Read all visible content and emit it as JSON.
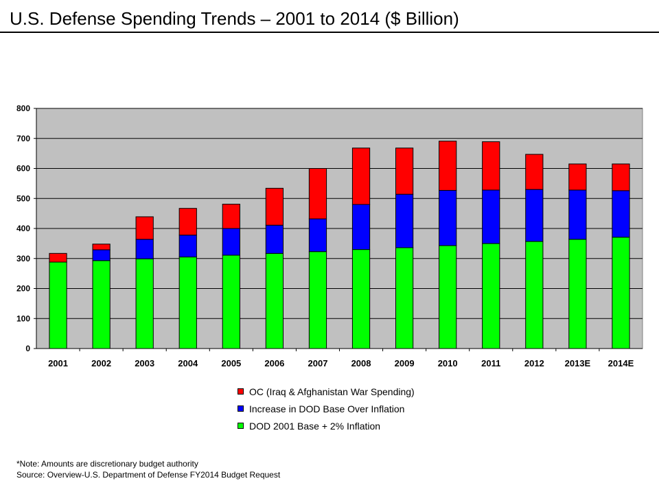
{
  "page": {
    "title": "U.S. Defense Spending Trends – 2001 to 2014 ($ Billion)"
  },
  "chart_data": {
    "type": "bar",
    "stacked": true,
    "title": "",
    "xlabel": "",
    "ylabel": "",
    "ylim": [
      0,
      800
    ],
    "yticks": [
      0,
      100,
      200,
      300,
      400,
      500,
      600,
      700,
      800
    ],
    "grid": true,
    "plot_background": "#c0c0c0",
    "legend_position": "bottom",
    "categories": [
      "2001",
      "2002",
      "2003",
      "2004",
      "2005",
      "2006",
      "2007",
      "2008",
      "2009",
      "2010",
      "2011",
      "2012",
      "2013E",
      "2014E"
    ],
    "series": [
      {
        "name": "DOD 2001 Base + 2% Inflation",
        "color": "#00ff00",
        "values": [
          288,
          293,
          299,
          305,
          311,
          317,
          323,
          330,
          336,
          343,
          350,
          357,
          364,
          371
        ]
      },
      {
        "name": "Increase in DOD Base Over Inflation",
        "color": "#0000ff",
        "values": [
          0,
          36,
          65,
          73,
          89,
          94,
          109,
          150,
          178,
          184,
          178,
          173,
          164,
          155
        ]
      },
      {
        "name": "OC (Iraq & Afghanistan War Spending)",
        "color": "#ff0000",
        "values": [
          29,
          19,
          75,
          89,
          81,
          123,
          168,
          188,
          154,
          164,
          161,
          117,
          87,
          89
        ]
      }
    ]
  },
  "legend": {
    "items": [
      {
        "label": "OC (Iraq & Afghanistan War Spending)",
        "color": "#ff0000"
      },
      {
        "label": "Increase in DOD Base Over Inflation",
        "color": "#0000ff"
      },
      {
        "label": "DOD 2001 Base + 2% Inflation",
        "color": "#00ff00"
      }
    ]
  },
  "footnotes": {
    "note": "*Note: Amounts are discretionary budget authority",
    "source": "Source: Overview-U.S. Department of Defense FY2014 Budget Request"
  }
}
